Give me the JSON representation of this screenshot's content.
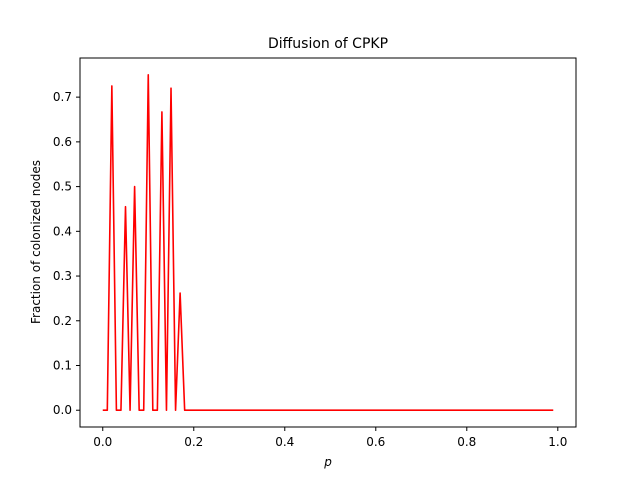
{
  "chart_data": {
    "type": "line",
    "title": "Diffusion of CPKP",
    "xlabel": "p",
    "ylabel": "Fraction of colonized nodes",
    "xlim": [
      -0.05,
      1.04
    ],
    "ylim": [
      -0.0375,
      0.7875
    ],
    "grid": false,
    "legend": "none",
    "x_ticks": [
      0.0,
      0.2,
      0.4,
      0.6,
      0.8,
      1.0
    ],
    "x_tick_labels": [
      "0.0",
      "0.2",
      "0.4",
      "0.6",
      "0.8",
      "1.0"
    ],
    "y_ticks": [
      0.0,
      0.1,
      0.2,
      0.3,
      0.4,
      0.5,
      0.6,
      0.7
    ],
    "y_tick_labels": [
      "0.0",
      "0.1",
      "0.2",
      "0.3",
      "0.4",
      "0.5",
      "0.6",
      "0.7"
    ],
    "series": [
      {
        "color": "#ff0000",
        "x": [
          0.0,
          0.01,
          0.02,
          0.03,
          0.04,
          0.05,
          0.06,
          0.07,
          0.08,
          0.09,
          0.1,
          0.11,
          0.12,
          0.13,
          0.14,
          0.15,
          0.16,
          0.17,
          0.18,
          0.19,
          0.2,
          0.3,
          0.4,
          0.5,
          0.6,
          0.7,
          0.8,
          0.9,
          0.99
        ],
        "y": [
          0.0,
          0.0,
          0.725,
          0.0,
          0.0,
          0.455,
          0.0,
          0.5,
          0.0,
          0.0,
          0.75,
          0.0,
          0.0,
          0.667,
          0.0,
          0.72,
          0.0,
          0.262,
          0.0,
          0.0,
          0.0,
          0.0,
          0.0,
          0.0,
          0.0,
          0.0,
          0.0,
          0.0,
          0.0
        ]
      }
    ]
  }
}
